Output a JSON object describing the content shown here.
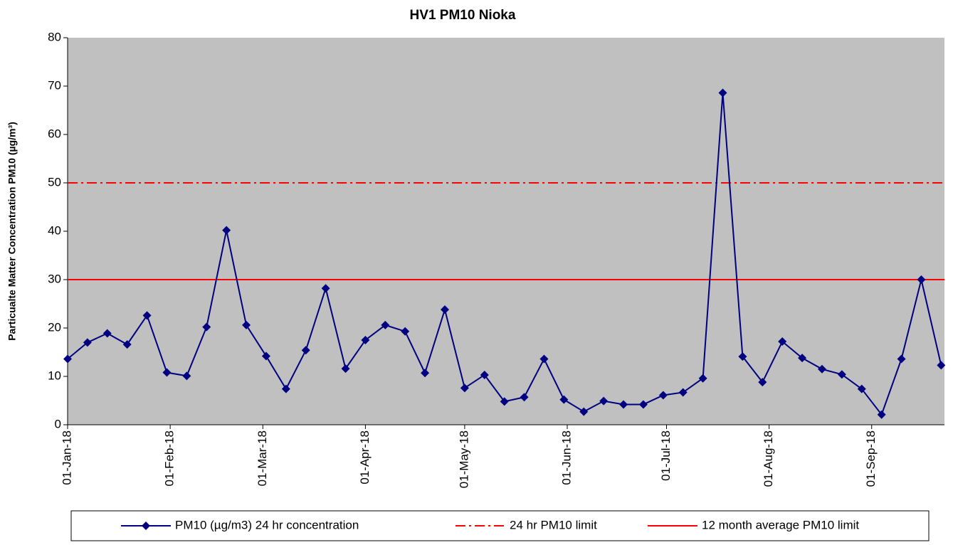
{
  "chart_data": {
    "type": "line",
    "title": "HV1 PM10  Nioka",
    "y_label": "Particualte Matter Concentration PM10 (µg/m³)",
    "x": [
      "2018-01-01",
      "2018-01-07",
      "2018-01-13",
      "2018-01-19",
      "2018-01-25",
      "2018-01-31",
      "2018-02-06",
      "2018-02-12",
      "2018-02-18",
      "2018-02-24",
      "2018-03-02",
      "2018-03-08",
      "2018-03-14",
      "2018-03-20",
      "2018-03-26",
      "2018-04-01",
      "2018-04-07",
      "2018-04-13",
      "2018-04-19",
      "2018-04-25",
      "2018-05-01",
      "2018-05-07",
      "2018-05-13",
      "2018-05-19",
      "2018-05-25",
      "2018-05-31",
      "2018-06-06",
      "2018-06-12",
      "2018-06-18",
      "2018-06-24",
      "2018-06-30",
      "2018-07-06",
      "2018-07-12",
      "2018-07-18",
      "2018-07-24",
      "2018-07-30",
      "2018-08-05",
      "2018-08-11",
      "2018-08-17",
      "2018-08-23",
      "2018-08-29",
      "2018-09-04",
      "2018-09-10",
      "2018-09-16",
      "2018-09-22"
    ],
    "series": [
      {
        "name": "PM10 (µg/m3) 24 hr concentration",
        "color": "#000080",
        "values": [
          13.6,
          17,
          18.9,
          16.6,
          22.6,
          10.8,
          10.1,
          20.2,
          40.2,
          20.6,
          14.2,
          7.4,
          15.4,
          28.2,
          11.6,
          17.5,
          20.6,
          19.3,
          10.7,
          23.8,
          7.6,
          10.3,
          4.8,
          5.7,
          13.6,
          5.2,
          2.7,
          4.9,
          4.2,
          4.2,
          6.1,
          6.7,
          9.6,
          68.6,
          14.1,
          8.8,
          17.2,
          13.8,
          11.5,
          10.4,
          7.4,
          2.1,
          13.6,
          30,
          12.3
        ]
      }
    ],
    "reference_lines": [
      {
        "name": "24 hr PM10 limit",
        "color": "#ff0000",
        "value": 50,
        "dash": "dashdot"
      },
      {
        "name": "12 month average PM10 limit",
        "color": "#ff0000",
        "value": 30,
        "dash": "solid"
      }
    ],
    "xlim": [
      "2018-01-01",
      "2018-09-23"
    ],
    "xticks": [
      {
        "value": "2018-01-01",
        "label": "01-Jan-18"
      },
      {
        "value": "2018-02-01",
        "label": "01-Feb-18"
      },
      {
        "value": "2018-03-01",
        "label": "01-Mar-18"
      },
      {
        "value": "2018-04-01",
        "label": "01-Apr-18"
      },
      {
        "value": "2018-05-01",
        "label": "01-May-18"
      },
      {
        "value": "2018-06-01",
        "label": "01-Jun-18"
      },
      {
        "value": "2018-07-01",
        "label": "01-Jul-18"
      },
      {
        "value": "2018-08-01",
        "label": "01-Aug-18"
      },
      {
        "value": "2018-09-01",
        "label": "01-Sep-18"
      }
    ],
    "ylim": [
      0,
      80
    ],
    "yticks": [
      0,
      10,
      20,
      30,
      40,
      50,
      60,
      70,
      80
    ],
    "legend": "bottom"
  }
}
